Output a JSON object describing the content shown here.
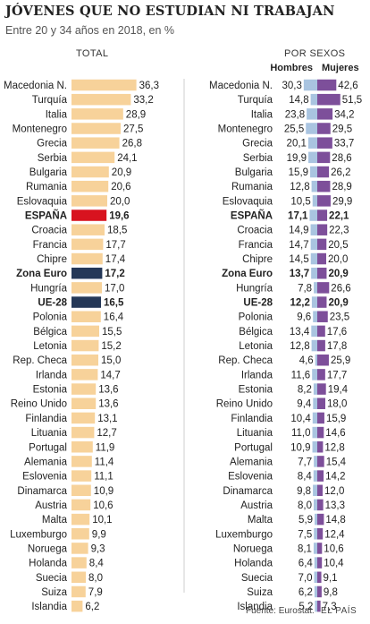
{
  "header": {
    "title": "JÓVENES QUE NO ESTUDIAN NI TRABAJAN",
    "subtitle": "Entre 20 y 34 años en 2018, en %"
  },
  "footer": {
    "source": "Fuente: Eurostat.",
    "credit": "EL PAÍS"
  },
  "colors": {
    "bar_default": "#f7d29a",
    "bar_spain": "#d8131f",
    "bar_aggregate": "#253858",
    "bar_hombres": "#a9c4e0",
    "bar_mujeres": "#7d4f9a",
    "text": "#222222"
  },
  "chart_data": [
    {
      "type": "bar",
      "orientation": "horizontal",
      "title": "TOTAL",
      "categories": [
        "Macedonia N.",
        "Turquía",
        "Italia",
        "Montenegro",
        "Grecia",
        "Serbia",
        "Bulgaria",
        "Rumania",
        "Eslovaquia",
        "ESPAÑA",
        "Croacia",
        "Francia",
        "Chipre",
        "Zona Euro",
        "Hungría",
        "UE-28",
        "Polonia",
        "Bélgica",
        "Letonia",
        "Rep. Checa",
        "Irlanda",
        "Estonia",
        "Reino Unido",
        "Finlandia",
        "Lituania",
        "Portugal",
        "Alemania",
        "Eslovenia",
        "Dinamarca",
        "Austria",
        "Malta",
        "Luxemburgo",
        "Noruega",
        "Holanda",
        "Suecia",
        "Suiza",
        "Islandia"
      ],
      "values": [
        36.3,
        33.2,
        28.9,
        27.5,
        26.8,
        24.1,
        20.9,
        20.6,
        20.0,
        19.6,
        18.5,
        17.7,
        17.4,
        17.2,
        17.0,
        16.5,
        16.4,
        15.5,
        15.2,
        15.0,
        14.7,
        13.6,
        13.6,
        13.1,
        12.7,
        11.9,
        11.4,
        11.1,
        10.9,
        10.6,
        10.1,
        9.9,
        9.3,
        8.4,
        8.0,
        7.9,
        6.2
      ],
      "labels": [
        "36,3",
        "33,2",
        "28,9",
        "27,5",
        "26,8",
        "24,1",
        "20,9",
        "20,6",
        "20,0",
        "19,6",
        "18,5",
        "17,7",
        "17,4",
        "17,2",
        "17,0",
        "16,5",
        "16,4",
        "15,5",
        "15,2",
        "15,0",
        "14,7",
        "13,6",
        "13,6",
        "13,1",
        "12,7",
        "11,9",
        "11,4",
        "11,1",
        "10,9",
        "10,6",
        "10,1",
        "9,9",
        "9,3",
        "8,4",
        "8,0",
        "7,9",
        "6,2"
      ],
      "highlight": {
        "ESPAÑA": "spain",
        "Zona Euro": "aggregate",
        "UE-28": "aggregate"
      }
    },
    {
      "type": "bar",
      "orientation": "horizontal",
      "title": "POR SEXOS",
      "categories": [
        "Macedonia N.",
        "Turquía",
        "Italia",
        "Montenegro",
        "Grecia",
        "Serbia",
        "Bulgaria",
        "Rumania",
        "Eslovaquia",
        "ESPAÑA",
        "Croacia",
        "Francia",
        "Chipre",
        "Zona Euro",
        "Hungría",
        "UE-28",
        "Polonia",
        "Bélgica",
        "Letonia",
        "Rep. Checa",
        "Irlanda",
        "Estonia",
        "Reino Unido",
        "Finlandia",
        "Lituania",
        "Portugal",
        "Alemania",
        "Eslovenia",
        "Dinamarca",
        "Austria",
        "Malta",
        "Luxemburgo",
        "Noruega",
        "Holanda",
        "Suecia",
        "Suiza",
        "Islandia"
      ],
      "series": [
        {
          "name": "Hombres",
          "values": [
            30.3,
            14.8,
            23.8,
            25.5,
            20.1,
            19.9,
            15.9,
            12.8,
            10.5,
            17.1,
            14.9,
            14.7,
            14.5,
            13.7,
            7.8,
            12.2,
            9.6,
            13.4,
            12.8,
            4.6,
            11.6,
            8.2,
            9.4,
            10.4,
            11.0,
            10.9,
            7.7,
            8.4,
            9.8,
            8.0,
            5.9,
            7.5,
            8.1,
            6.4,
            7.0,
            6.2,
            5.2
          ],
          "labels": [
            "30,3",
            "14,8",
            "23,8",
            "25,5",
            "20,1",
            "19,9",
            "15,9",
            "12,8",
            "10,5",
            "17,1",
            "14,9",
            "14,7",
            "14,5",
            "13,7",
            "7,8",
            "12,2",
            "9,6",
            "13,4",
            "12,8",
            "4,6",
            "11,6",
            "8,2",
            "9,4",
            "10,4",
            "11,0",
            "10,9",
            "7,7",
            "8,4",
            "9,8",
            "8,0",
            "5,9",
            "7,5",
            "8,1",
            "6,4",
            "7,0",
            "6,2",
            "5,2"
          ]
        },
        {
          "name": "Mujeres",
          "values": [
            42.6,
            51.5,
            34.2,
            29.5,
            33.7,
            28.6,
            26.2,
            28.9,
            29.9,
            22.1,
            22.3,
            20.5,
            20.0,
            20.9,
            26.6,
            20.9,
            23.5,
            17.6,
            17.8,
            25.9,
            17.7,
            19.4,
            18.0,
            15.9,
            14.6,
            12.8,
            15.4,
            14.2,
            12.0,
            13.3,
            14.8,
            12.4,
            10.6,
            10.4,
            9.1,
            9.8,
            7.3
          ],
          "labels": [
            "42,6",
            "51,5",
            "34,2",
            "29,5",
            "33,7",
            "28,6",
            "26,2",
            "28,9",
            "29,9",
            "22,1",
            "22,3",
            "20,5",
            "20,0",
            "20,9",
            "26,6",
            "20,9",
            "23,5",
            "17,6",
            "17,8",
            "25,9",
            "17,7",
            "19,4",
            "18,0",
            "15,9",
            "14,6",
            "12,8",
            "15,4",
            "14,2",
            "12,0",
            "13,3",
            "14,8",
            "12,4",
            "10,6",
            "10,4",
            "9,1",
            "9,8",
            "7,3"
          ]
        }
      ],
      "bold_categories": [
        "ESPAÑA",
        "Zona Euro",
        "UE-28"
      ]
    }
  ]
}
